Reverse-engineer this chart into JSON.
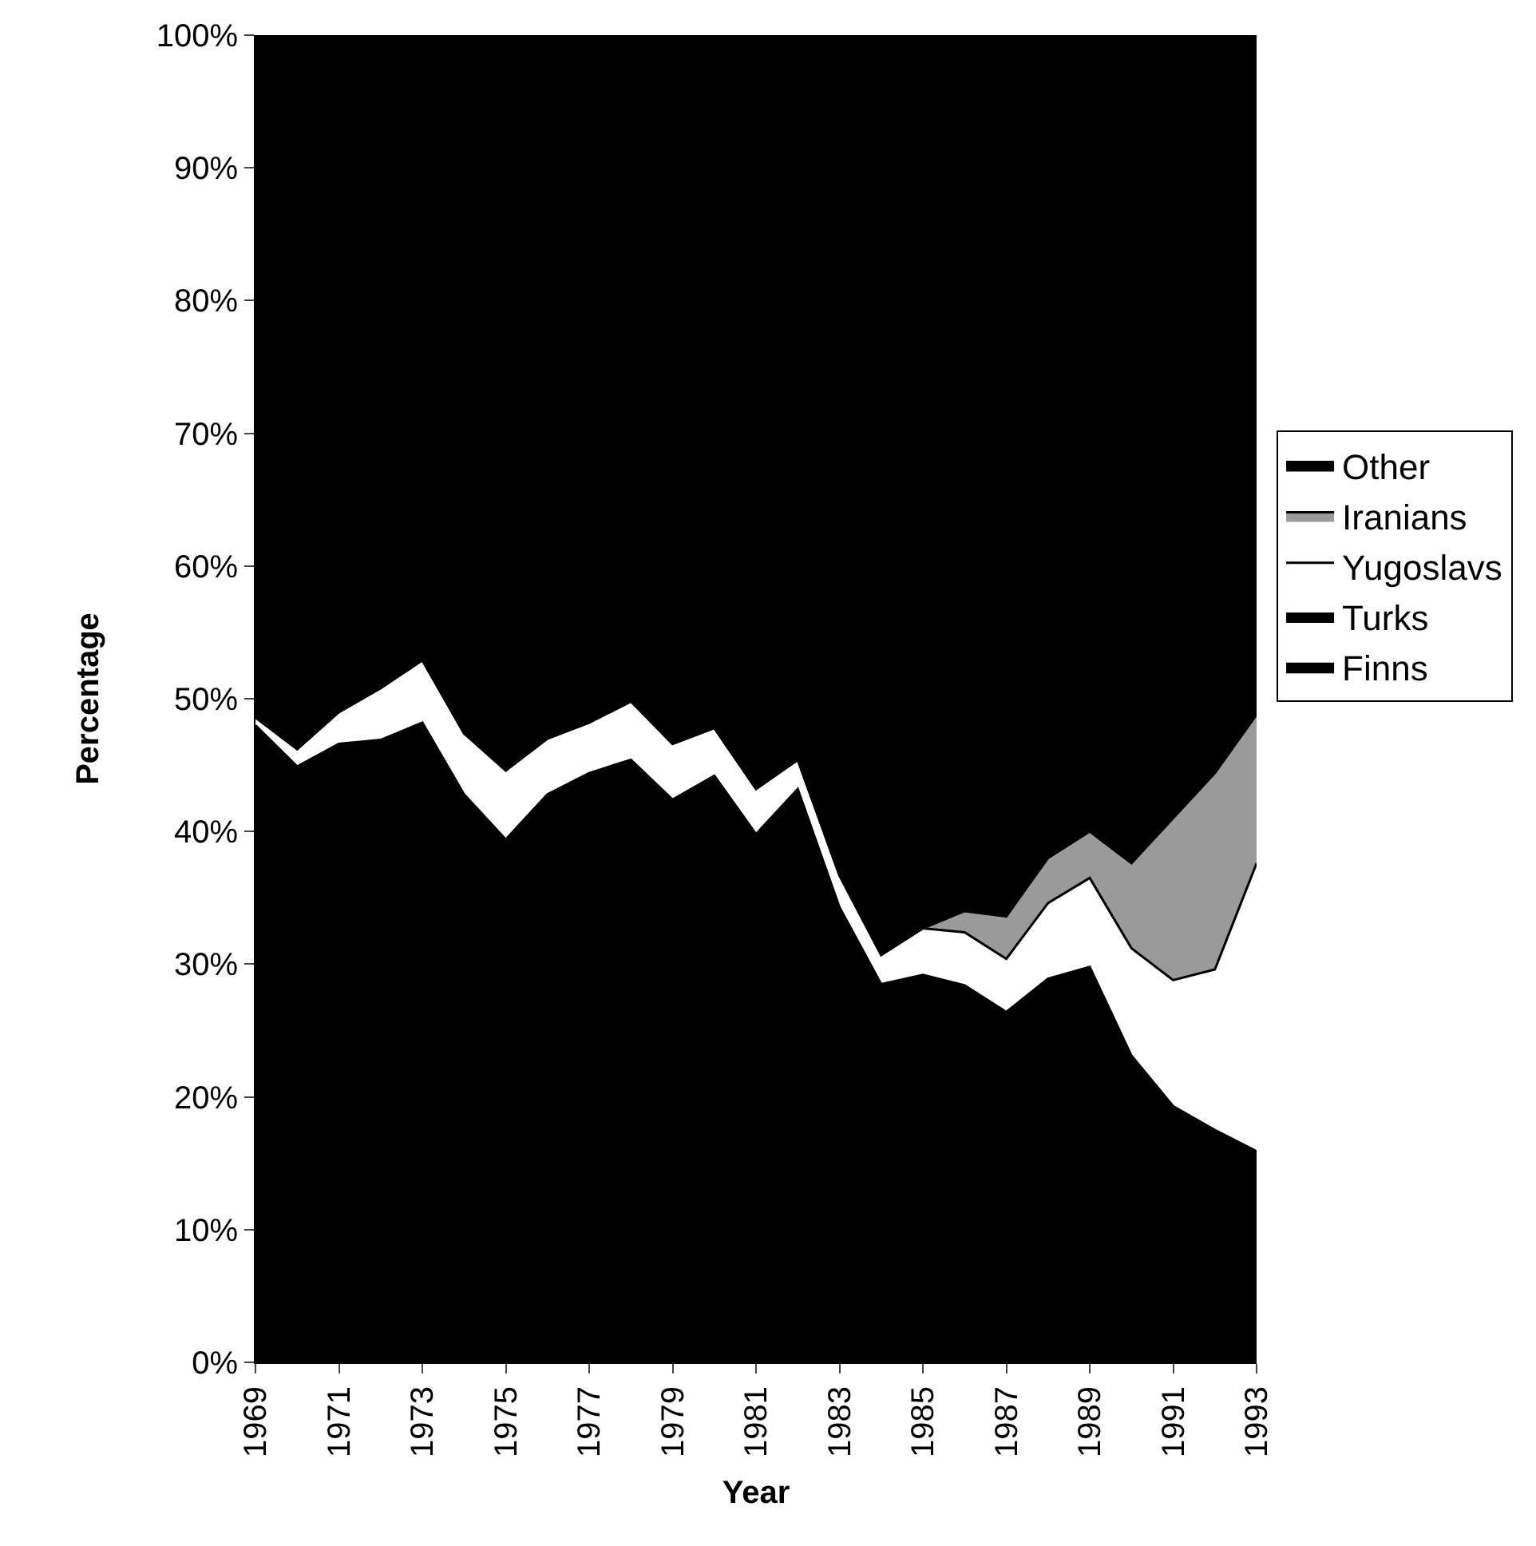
{
  "chart_data": {
    "type": "area",
    "stacked": true,
    "xlabel": "Year",
    "ylabel": "Percentage",
    "x": [
      1969,
      1970,
      1971,
      1972,
      1973,
      1974,
      1975,
      1976,
      1977,
      1978,
      1979,
      1980,
      1981,
      1982,
      1983,
      1984,
      1985,
      1986,
      1987,
      1988,
      1989,
      1990,
      1991,
      1992,
      1993
    ],
    "series": [
      {
        "name": "Finns",
        "color": "#000000",
        "values": [
          48.0,
          44.9,
          46.6,
          46.9,
          48.2,
          42.8,
          39.4,
          42.8,
          44.4,
          45.4,
          42.4,
          44.2,
          39.8,
          43.2,
          34.3,
          28.5,
          29.2,
          28.4,
          26.4,
          28.9,
          29.8,
          23.1,
          19.3,
          17.5,
          15.9
        ]
      },
      {
        "name": "Turks",
        "color": "#000000",
        "values": [
          null,
          null,
          null,
          null,
          null,
          null,
          null,
          null,
          null,
          null,
          null,
          null,
          null,
          null,
          null,
          null,
          null,
          null,
          null,
          null,
          null,
          null,
          null,
          null,
          null
        ]
      },
      {
        "name": "Yugoslavs",
        "color": "#ffffff",
        "values": [
          0.6,
          1.3,
          2.4,
          3.9,
          4.7,
          4.6,
          5.2,
          4.2,
          3.8,
          4.4,
          4.2,
          3.6,
          3.4,
          2.2,
          2.4,
          2.2,
          3.5,
          4.0,
          4.0,
          5.7,
          6.7,
          8.1,
          9.5,
          12.1,
          21.7
        ]
      },
      {
        "name": "Iranians",
        "color": "#9a9a9a",
        "values": [
          0,
          0,
          0,
          0,
          0,
          0,
          0,
          0,
          0,
          0,
          0,
          0,
          0,
          0,
          0,
          0,
          0,
          1.6,
          3.2,
          3.4,
          3.5,
          6.4,
          12.2,
          14.8,
          11.2
        ]
      },
      {
        "name": "Other",
        "color": "#000000",
        "values": [
          51.4,
          53.8,
          51.0,
          49.2,
          47.1,
          52.6,
          55.4,
          53.0,
          51.8,
          50.2,
          53.4,
          52.2,
          56.8,
          54.6,
          63.3,
          69.3,
          67.3,
          66.0,
          66.4,
          62.0,
          60.0,
          62.4,
          59.0,
          55.6,
          51.2
        ]
      }
    ],
    "xlim": [
      1969,
      1993
    ],
    "xticks": [
      1969,
      1971,
      1973,
      1975,
      1977,
      1979,
      1981,
      1983,
      1985,
      1987,
      1989,
      1991,
      1993
    ],
    "ylim": [
      0,
      100
    ],
    "yticks": [
      {
        "value": 0,
        "label": "0%"
      },
      {
        "value": 10,
        "label": "10%"
      },
      {
        "value": 20,
        "label": "20%"
      },
      {
        "value": 30,
        "label": "30%"
      },
      {
        "value": 40,
        "label": "40%"
      },
      {
        "value": 50,
        "label": "50%"
      },
      {
        "value": 60,
        "label": "60%"
      },
      {
        "value": 70,
        "label": "70%"
      },
      {
        "value": 80,
        "label": "80%"
      },
      {
        "value": 90,
        "label": "90%"
      },
      {
        "value": 100,
        "label": "100%"
      }
    ],
    "legend": "right"
  }
}
